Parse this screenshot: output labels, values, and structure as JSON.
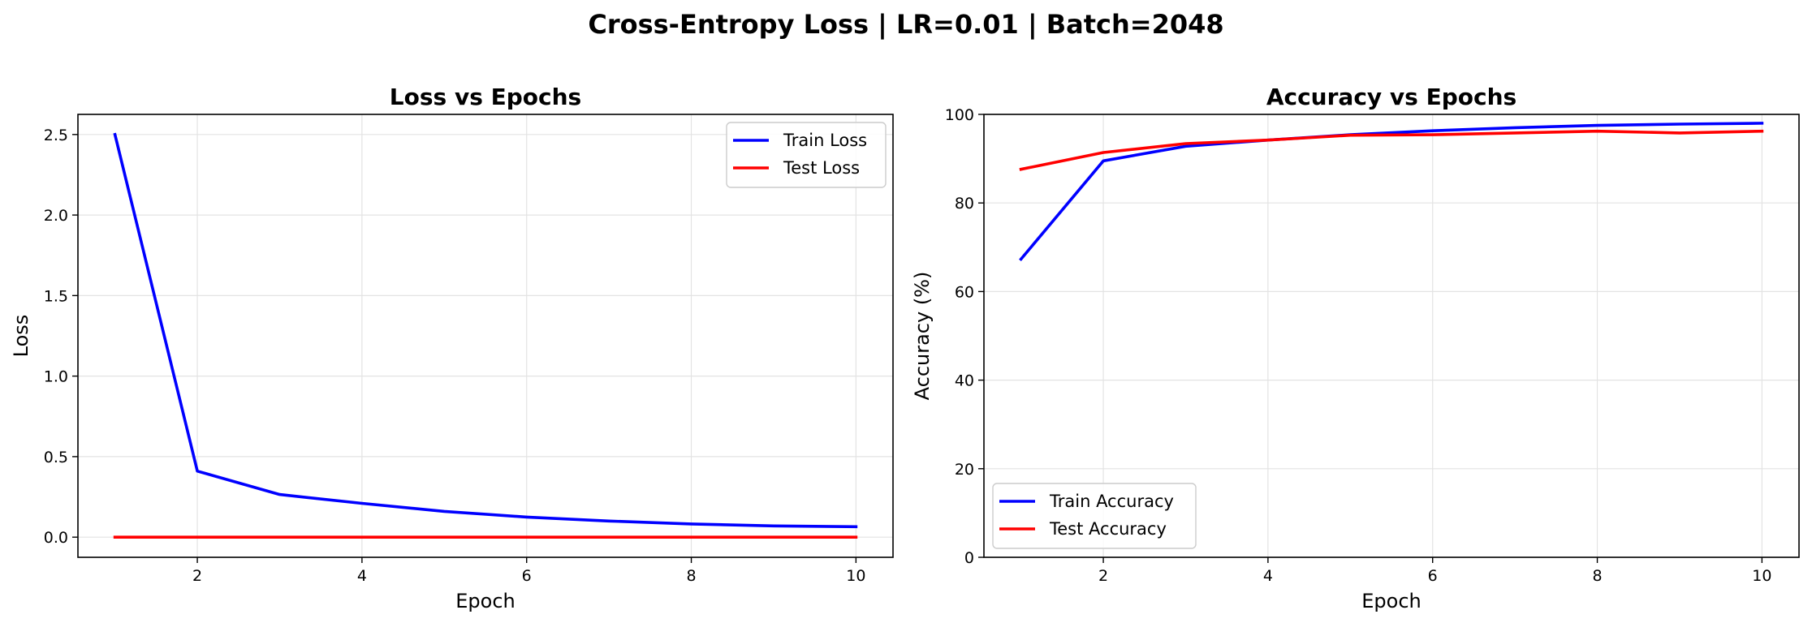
{
  "figure": {
    "suptitle": "Cross-Entropy Loss | LR=0.01 | Batch=2048"
  },
  "colors": {
    "train": "#0000ff",
    "test": "#ff0000"
  },
  "chart_data": [
    {
      "type": "line",
      "title": "Loss vs Epochs",
      "xlabel": "Epoch",
      "ylabel": "Loss",
      "x": [
        1,
        2,
        3,
        4,
        5,
        6,
        7,
        8,
        9,
        10
      ],
      "xlim": [
        0.55,
        10.45
      ],
      "ylim": [
        -0.125,
        2.625
      ],
      "xticks": [
        2,
        4,
        6,
        8,
        10
      ],
      "yticks": [
        0.0,
        0.5,
        1.0,
        1.5,
        2.0,
        2.5
      ],
      "ytick_labels": [
        "0.0",
        "0.5",
        "1.0",
        "1.5",
        "2.0",
        "2.5"
      ],
      "grid": true,
      "legend_position": "upper right",
      "series": [
        {
          "name": "Train Loss",
          "color": "#0000ff",
          "values": [
            2.5,
            0.41,
            0.265,
            0.21,
            0.16,
            0.125,
            0.1,
            0.082,
            0.07,
            0.065
          ]
        },
        {
          "name": "Test Loss",
          "color": "#ff0000",
          "values": [
            0.0,
            0.0,
            0.0,
            0.0,
            0.0,
            0.0,
            0.0,
            0.0,
            0.0,
            0.0
          ]
        }
      ]
    },
    {
      "type": "line",
      "title": "Accuracy vs Epochs",
      "xlabel": "Epoch",
      "ylabel": "Accuracy (%)",
      "x": [
        1,
        2,
        3,
        4,
        5,
        6,
        7,
        8,
        9,
        10
      ],
      "xlim": [
        0.55,
        10.45
      ],
      "ylim": [
        0,
        100
      ],
      "xticks": [
        2,
        4,
        6,
        8,
        10
      ],
      "yticks": [
        0,
        20,
        40,
        60,
        80,
        100
      ],
      "ytick_labels": [
        "0",
        "20",
        "40",
        "60",
        "80",
        "100"
      ],
      "grid": true,
      "legend_position": "lower left",
      "series": [
        {
          "name": "Train Accuracy",
          "color": "#0000ff",
          "values": [
            67.3,
            89.5,
            92.8,
            94.2,
            95.4,
            96.3,
            97.0,
            97.5,
            97.8,
            98.0
          ]
        },
        {
          "name": "Test Accuracy",
          "color": "#ff0000",
          "values": [
            87.6,
            91.4,
            93.4,
            94.2,
            95.3,
            95.4,
            95.8,
            96.2,
            95.8,
            96.2
          ]
        }
      ]
    }
  ]
}
